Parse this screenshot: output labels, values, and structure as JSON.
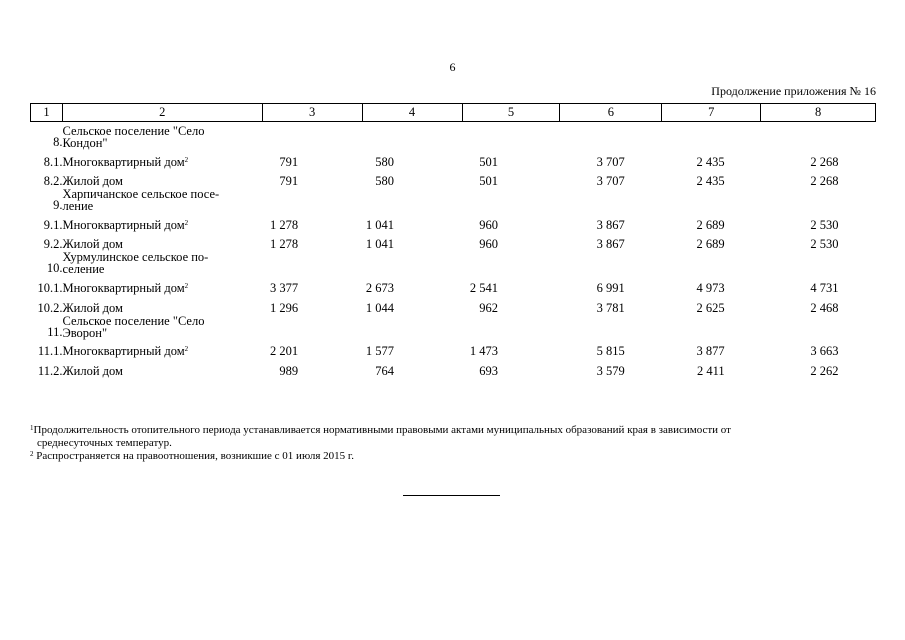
{
  "page_number": "6",
  "continuation_label": "Продолжение приложения № 16",
  "columns": [
    "1",
    "2",
    "3",
    "4",
    "5",
    "6",
    "7",
    "8"
  ],
  "rows": [
    {
      "type": "group",
      "num": "8.",
      "name_lines": [
        "Сельское поселение \"Село",
        "Кондон\""
      ]
    },
    {
      "type": "item",
      "num": "8.1.",
      "name": "Многоквартирный дом",
      "sup": "2",
      "values": [
        "791",
        "580",
        "501",
        "3 707",
        "2 435",
        "2 268"
      ]
    },
    {
      "type": "item",
      "num": "8.2.",
      "name": "Жилой дом",
      "sup": "",
      "values": [
        "791",
        "580",
        "501",
        "3 707",
        "2 435",
        "2 268"
      ]
    },
    {
      "type": "group",
      "num": "9.",
      "name_lines": [
        "Харпичанское сельское посе-",
        "ление"
      ]
    },
    {
      "type": "item",
      "num": "9.1.",
      "name": "Многоквартирный дом",
      "sup": "2",
      "values": [
        "1 278",
        "1 041",
        "960",
        "3 867",
        "2 689",
        "2 530"
      ]
    },
    {
      "type": "item",
      "num": "9.2.",
      "name": "Жилой дом",
      "sup": "",
      "values": [
        "1 278",
        "1 041",
        "960",
        "3 867",
        "2 689",
        "2 530"
      ]
    },
    {
      "type": "group",
      "num": "10.",
      "name_lines": [
        "Хурмулинское сельское по-",
        "селение"
      ]
    },
    {
      "type": "item",
      "num": "10.1.",
      "name": "Многоквартирный дом",
      "sup": "2",
      "values": [
        "3 377",
        "2 673",
        "2 541",
        "6 991",
        "4 973",
        "4 731"
      ]
    },
    {
      "type": "item",
      "num": "10.2.",
      "name": "Жилой дом",
      "sup": "",
      "values": [
        "1 296",
        "1 044",
        "962",
        "3 781",
        "2 625",
        "2 468"
      ]
    },
    {
      "type": "group",
      "num": "11.",
      "name_lines": [
        "Сельское поселение \"Село",
        "Эворон\""
      ]
    },
    {
      "type": "item",
      "num": "11.1.",
      "name": "Многоквартирный дом",
      "sup": "2",
      "values": [
        "2 201",
        "1 577",
        "1 473",
        "5 815",
        "3 877",
        "3 663"
      ]
    },
    {
      "type": "item",
      "num": "11.2.",
      "name": "Жилой дом",
      "sup": "",
      "values": [
        "989",
        "764",
        "693",
        "3 579",
        "2 411",
        "2 262"
      ]
    }
  ],
  "footnotes": {
    "fn1_mark": "1",
    "fn1_line1": "Продолжительность отопительного периода устанавливается нормативными правовыми актами муниципальных образований края в зависимости от",
    "fn1_line2": "среднесуточных температур.",
    "fn2_mark": "2",
    "fn2_text": "Распространяется на правоотношения, возникшие с 01 июля 2015 г."
  }
}
